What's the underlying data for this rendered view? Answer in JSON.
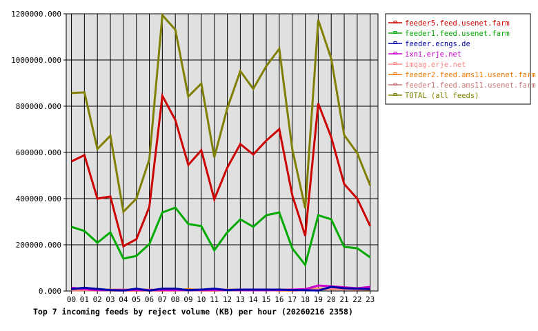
{
  "chart_data": {
    "type": "line",
    "title": "Top 7 incoming feeds by reject volume (KB) per hour (20260216 2358)",
    "xlabel": "",
    "ylabel": "",
    "ylim": [
      0,
      1200000
    ],
    "grid": true,
    "legend_position": "right",
    "y_ticks": [
      "0.000",
      "200000.000",
      "400000.000",
      "600000.000",
      "800000.000",
      "1000000.000",
      "1200000.000"
    ],
    "categories": [
      "00",
      "01",
      "02",
      "03",
      "04",
      "05",
      "06",
      "07",
      "08",
      "09",
      "10",
      "11",
      "12",
      "13",
      "14",
      "15",
      "16",
      "17",
      "18",
      "19",
      "20",
      "21",
      "22",
      "23"
    ],
    "series": [
      {
        "name": "feeder5.feed.usenet.farm",
        "color": "#cc0000",
        "values": [
          561000,
          588000,
          400000,
          409000,
          194000,
          224000,
          364000,
          845000,
          740000,
          546000,
          609000,
          397000,
          534000,
          636000,
          591000,
          651000,
          701000,
          415000,
          239000,
          812000,
          666000,
          463000,
          400000,
          281000
        ]
      },
      {
        "name": "feeder1.feed.usenet.farm",
        "color": "#00aa00",
        "values": [
          278000,
          260000,
          209000,
          254000,
          140000,
          152000,
          203000,
          340000,
          361000,
          290000,
          281000,
          176000,
          254000,
          310000,
          278000,
          328000,
          340000,
          185000,
          113000,
          328000,
          310000,
          191000,
          185000,
          146000
        ]
      },
      {
        "name": "feeder.ecngs.de",
        "color": "#0000aa",
        "values": [
          8000,
          14000,
          9000,
          4000,
          2000,
          10000,
          2000,
          10000,
          10000,
          4000,
          6000,
          10000,
          4000,
          6000,
          6000,
          6000,
          6000,
          4000,
          4000,
          2000,
          18000,
          12000,
          10000,
          8000
        ]
      },
      {
        "name": "ixni.erje.net",
        "color": "#cc00cc",
        "values": [
          14000,
          8000,
          4000,
          4000,
          4000,
          4000,
          4000,
          4000,
          4000,
          4000,
          4000,
          4000,
          4000,
          4000,
          4000,
          4000,
          4000,
          6000,
          8000,
          24000,
          20000,
          16000,
          12000,
          18000
        ]
      },
      {
        "name": "imqag.erje.net",
        "color": "#ff8888",
        "values": [
          4000,
          4000,
          4000,
          4000,
          4000,
          4000,
          4000,
          4000,
          4000,
          4000,
          4000,
          4000,
          4000,
          4000,
          4000,
          4000,
          4000,
          4000,
          4000,
          8000,
          8000,
          8000,
          6000,
          8000
        ]
      },
      {
        "name": "feeder2.feed.ams11.usenet.farm",
        "color": "#ee7700",
        "values": [
          8000,
          6000,
          8000,
          2000,
          2000,
          2000,
          2000,
          2000,
          2000,
          8000,
          2000,
          2000,
          4000,
          4000,
          4000,
          4000,
          2000,
          2000,
          4000,
          10000,
          8000,
          8000,
          8000,
          6000
        ]
      },
      {
        "name": "feeder1.feed.ams11.usenet.farm",
        "color": "#cc7777",
        "values": [
          4000,
          4000,
          4000,
          6000,
          6000,
          6000,
          6000,
          6000,
          6000,
          6000,
          6000,
          6000,
          6000,
          6000,
          6000,
          6000,
          6000,
          6000,
          6000,
          10000,
          10000,
          10000,
          10000,
          10000
        ]
      },
      {
        "name": "TOTAL (all feeds)",
        "color": "#808000",
        "values": [
          857000,
          860000,
          615000,
          672000,
          343000,
          400000,
          570000,
          1194000,
          1131000,
          842000,
          898000,
          579000,
          791000,
          952000,
          875000,
          973000,
          1048000,
          615000,
          358000,
          1173000,
          1006000,
          675000,
          597000,
          457000
        ]
      }
    ]
  },
  "page": {
    "title": "Top 7 incoming feeds by reject volume (KB) per hour (20260216 2358)"
  }
}
